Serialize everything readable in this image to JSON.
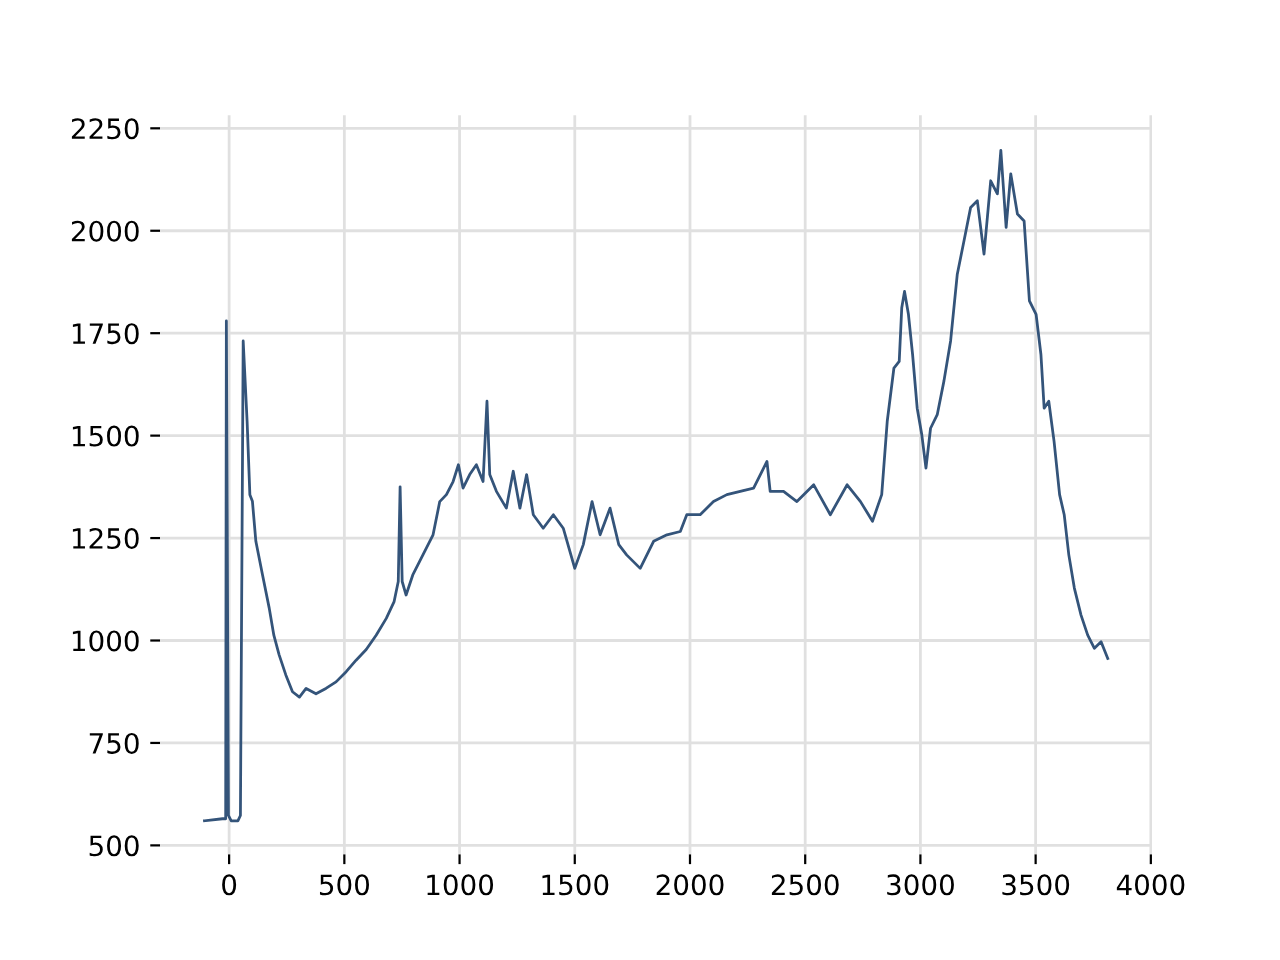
{
  "chart_data": {
    "type": "line",
    "xlim": [
      -300,
      4005
    ],
    "ylim": [
      478,
      2282
    ],
    "xticks": [
      0,
      500,
      1000,
      1500,
      2000,
      2500,
      3000,
      3500,
      4000
    ],
    "yticks": [
      500,
      750,
      1000,
      1250,
      1500,
      1750,
      2000,
      2250
    ],
    "grid": true,
    "legend": false,
    "marker": "none",
    "line_style": "solid",
    "series": [
      {
        "color": "#34547a",
        "x": [
          -107,
          -29,
          -15,
          -12,
          -3,
          9,
          38,
          49,
          61,
          78,
          90,
          101,
          116,
          145,
          174,
          194,
          217,
          246,
          275,
          305,
          334,
          377,
          420,
          464,
          508,
          551,
          595,
          638,
          682,
          716,
          734,
          742,
          751,
          768,
          797,
          841,
          885,
          914,
          943,
          972,
          995,
          1015,
          1044,
          1073,
          1102,
          1119,
          1131,
          1160,
          1203,
          1233,
          1262,
          1291,
          1320,
          1363,
          1407,
          1450,
          1500,
          1537,
          1575,
          1610,
          1653,
          1691,
          1725,
          1784,
          1842,
          1900,
          1958,
          1986,
          2044,
          2102,
          2160,
          2218,
          2276,
          2334,
          2348,
          2406,
          2464,
          2537,
          2609,
          2682,
          2740,
          2792,
          2832,
          2856,
          2885,
          2908,
          2919,
          2931,
          2948,
          2966,
          2986,
          3006,
          3024,
          3044,
          3073,
          3102,
          3131,
          3160,
          3189,
          3218,
          3247,
          3276,
          3305,
          3334,
          3349,
          3372,
          3392,
          3421,
          3450,
          3473,
          3502,
          3523,
          3537,
          3557,
          3580,
          3604,
          3624,
          3644,
          3668,
          3697,
          3726,
          3755,
          3784,
          3813
        ],
        "values": [
          560,
          565,
          565,
          1780,
          573,
          560,
          560,
          573,
          1731,
          1535,
          1356,
          1340,
          1242,
          1160,
          1079,
          1013,
          965,
          916,
          875,
          862,
          883,
          870,
          883,
          899,
          924,
          952,
          978,
          1013,
          1054,
          1095,
          1144,
          1375,
          1144,
          1111,
          1160,
          1209,
          1258,
          1339,
          1356,
          1388,
          1429,
          1372,
          1405,
          1429,
          1388,
          1584,
          1405,
          1364,
          1323,
          1413,
          1323,
          1405,
          1307,
          1274,
          1307,
          1274,
          1176,
          1234,
          1339,
          1258,
          1323,
          1234,
          1209,
          1176,
          1242,
          1258,
          1266,
          1307,
          1307,
          1339,
          1356,
          1364,
          1372,
          1437,
          1364,
          1364,
          1339,
          1380,
          1307,
          1380,
          1339,
          1291,
          1356,
          1535,
          1665,
          1681,
          1812,
          1852,
          1796,
          1698,
          1567,
          1502,
          1421,
          1518,
          1551,
          1633,
          1731,
          1894,
          1975,
          2057,
          2073,
          1943,
          2122,
          2090,
          2196,
          2008,
          2139,
          2041,
          2024,
          1829,
          1796,
          1698,
          1567,
          1584,
          1486,
          1356,
          1307,
          1209,
          1128,
          1062,
          1013,
          981,
          997,
          956
        ]
      }
    ]
  }
}
